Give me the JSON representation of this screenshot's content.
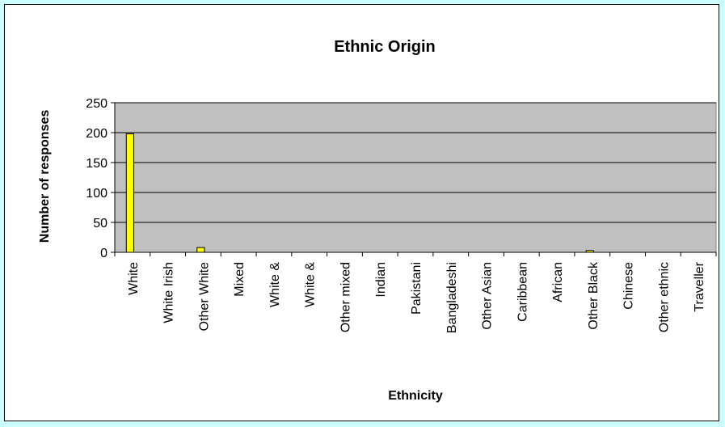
{
  "chart_data": {
    "type": "bar",
    "title": "Ethnic Origin",
    "xlabel": "Ethnicity",
    "ylabel": "Number of responses",
    "categories": [
      "White",
      "White Irish",
      "Other White",
      "Mixed",
      "White &",
      "White &",
      "Other mixed",
      "Indian",
      "Pakistani",
      "Bangladeshi",
      "Other Asian",
      "Caribbean",
      "African",
      "Other Black",
      "Chinese",
      "Other ethnic",
      "Traveller"
    ],
    "values": [
      198,
      0,
      8,
      0,
      0,
      0,
      0,
      0,
      0,
      0,
      0,
      0,
      0,
      3,
      0,
      0,
      0
    ],
    "ylim": [
      0,
      250
    ],
    "yticks": [
      0,
      50,
      100,
      150,
      200,
      250
    ],
    "grid": true,
    "legend": "none",
    "colors": {
      "plot_background": "#c0c0c0",
      "bar_fill": "#ffff00",
      "bar_stroke": "#000000",
      "page_background": "#ccffff"
    }
  }
}
